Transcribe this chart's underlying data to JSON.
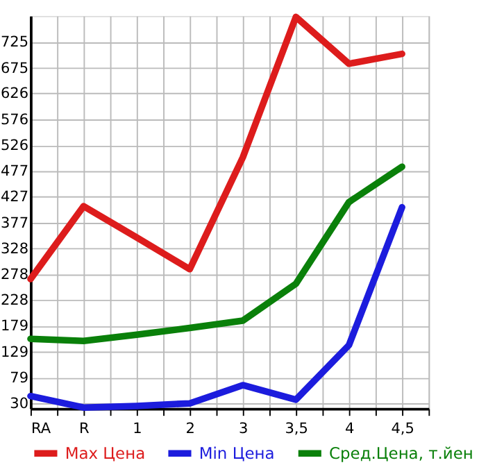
{
  "chart_data": {
    "type": "line",
    "categories": [
      "RA",
      "R",
      "1",
      "2",
      "3",
      "3,5",
      "4",
      "4,5"
    ],
    "series": [
      {
        "name": "Max Цена",
        "color": "#dd1c1c",
        "values": [
          269,
          409,
          349,
          288,
          503,
          773,
          683,
          702
        ]
      },
      {
        "name": "Min Цена",
        "color": "#1c1cdd",
        "values": [
          44,
          22,
          25,
          30,
          65,
          37,
          142,
          407
        ]
      },
      {
        "name": "Сред.Цена, т.йен",
        "color": "#0a800a",
        "values": [
          154,
          150,
          162,
          175,
          189,
          260,
          417,
          485
        ]
      }
    ],
    "ylim": [
      20,
      775
    ],
    "yticks": [
      30,
      79,
      129,
      179,
      228,
      278,
      328,
      377,
      427,
      477,
      526,
      576,
      626,
      675,
      725
    ],
    "grid": true,
    "legend": "bottom",
    "marker": "none",
    "line_style": "solid"
  }
}
